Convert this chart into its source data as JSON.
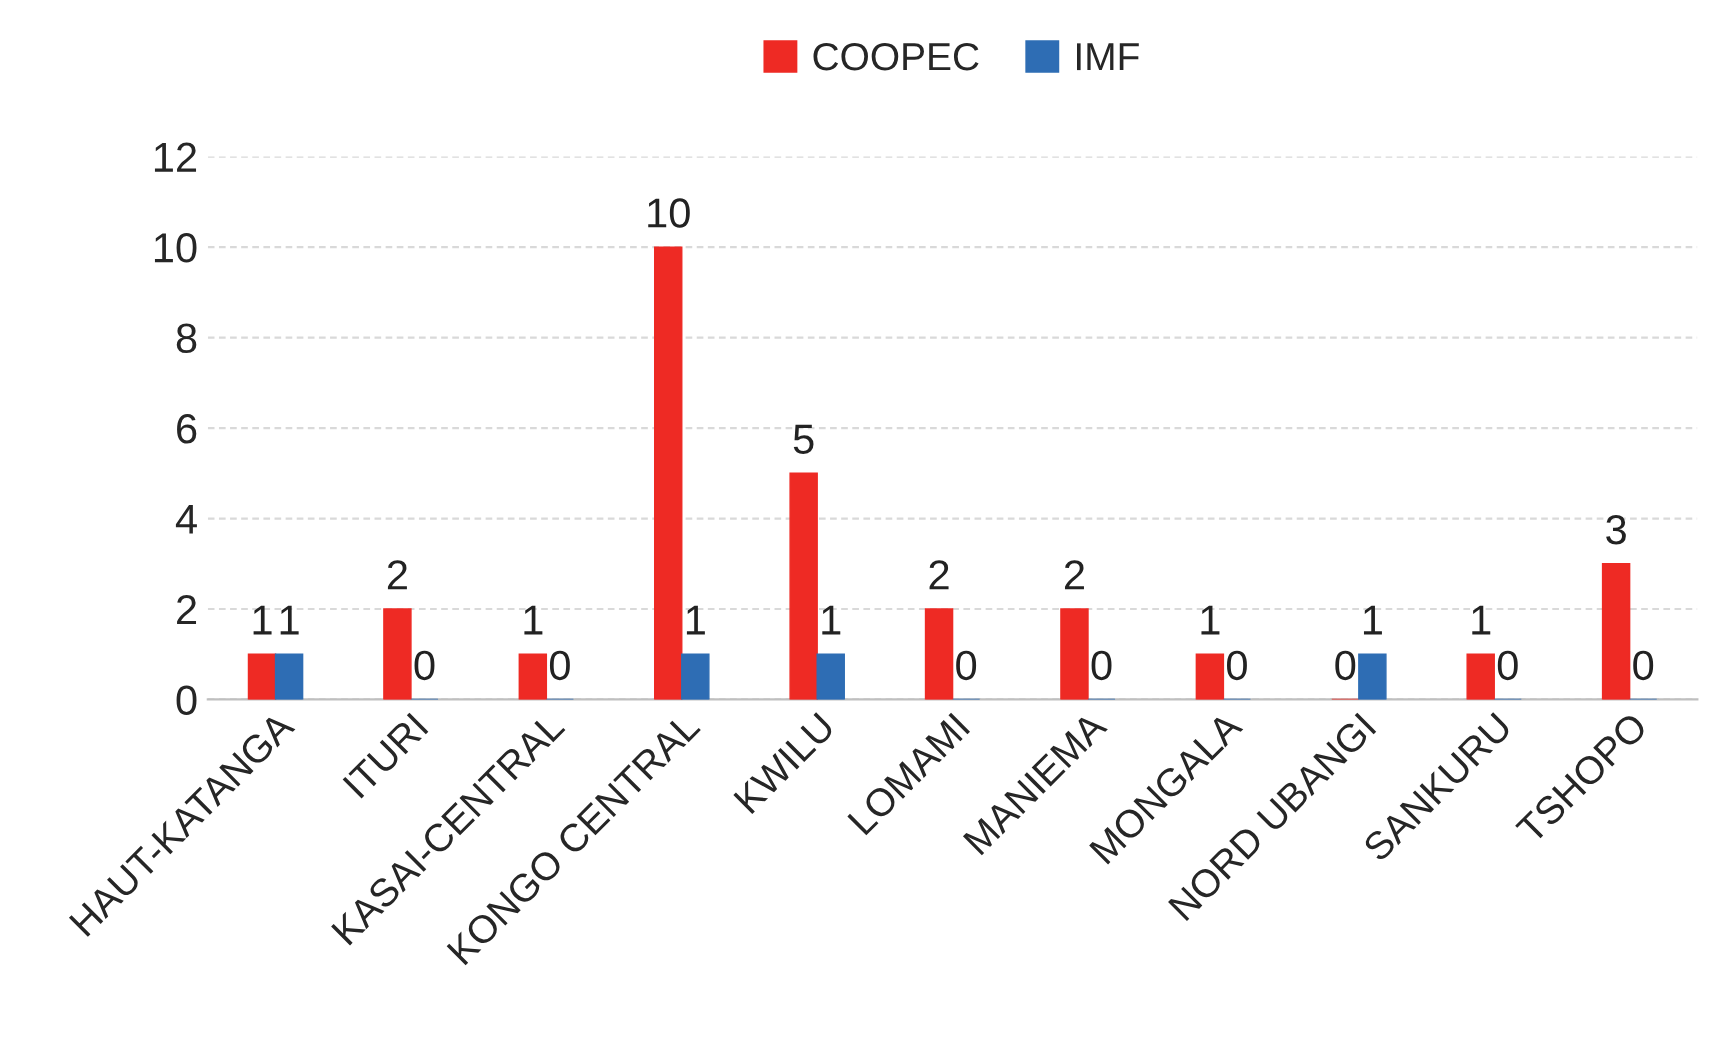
{
  "chart_data": {
    "type": "bar",
    "categories": [
      "HAUT-KATANGA",
      "ITURI",
      "KASAI-CENTRAL",
      "KONGO CENTRAL",
      "KWILU",
      "LOMAMI",
      "MANIEMA",
      "MONGALA",
      "NORD UBANGI",
      "SANKURU",
      "TSHOPO"
    ],
    "series": [
      {
        "name": "COOPEC",
        "color": "#ee2a24",
        "values": [
          1,
          2,
          1,
          10,
          5,
          2,
          2,
          1,
          0,
          1,
          3
        ]
      },
      {
        "name": "IMF",
        "color": "#2e6db4",
        "values": [
          1,
          0,
          0,
          1,
          1,
          0,
          0,
          0,
          1,
          0,
          0
        ]
      }
    ],
    "ylim": [
      0,
      12
    ],
    "yticks": [
      0,
      2,
      4,
      6,
      8,
      10,
      12
    ],
    "grid": "y",
    "legend": "top",
    "data_labels": true
  }
}
